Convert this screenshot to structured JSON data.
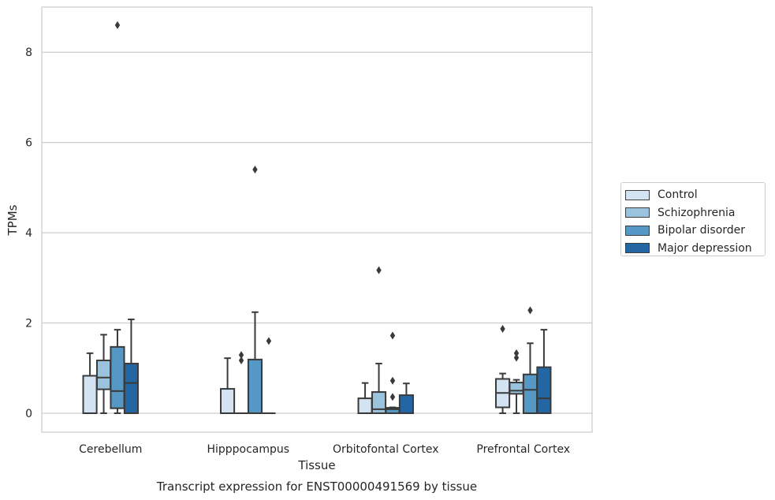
{
  "chart_data": {
    "type": "box",
    "title": "",
    "caption": "Transcript expression for ENST00000491569 by tissue",
    "xlabel": "Tissue",
    "ylabel": "TPMs",
    "ylim": [
      -0.42,
      9.0
    ],
    "yticks": [
      0,
      2,
      4,
      6,
      8
    ],
    "grid": true,
    "legend_position": "right",
    "categories": [
      "Cerebellum",
      "Hipppocampus",
      "Orbitofontal Cortex",
      "Prefrontal Cortex"
    ],
    "series": [
      {
        "name": "Control",
        "color": "#d4e3f2",
        "boxes": [
          {
            "min": 0,
            "q1": 0,
            "median": 0,
            "q3": 0.83,
            "max": 1.33,
            "outliers": []
          },
          {
            "min": 0,
            "q1": 0,
            "median": 0,
            "q3": 0.54,
            "max": 1.22,
            "outliers": []
          },
          {
            "min": 0,
            "q1": 0,
            "median": 0,
            "q3": 0.33,
            "max": 0.67,
            "outliers": []
          },
          {
            "min": 0,
            "q1": 0.13,
            "median": 0.45,
            "q3": 0.76,
            "max": 0.88,
            "outliers": [
              1.87
            ]
          }
        ]
      },
      {
        "name": "Schizophrenia",
        "color": "#9cc3de",
        "boxes": [
          {
            "min": 0,
            "q1": 0.53,
            "median": 0.79,
            "q3": 1.17,
            "max": 1.74,
            "outliers": []
          },
          {
            "min": 0,
            "q1": 0,
            "median": 0,
            "q3": 0,
            "max": 0,
            "outliers": [
              1.17,
              1.29
            ]
          },
          {
            "min": 0,
            "q1": 0,
            "median": 0.09,
            "q3": 0.47,
            "max": 1.1,
            "outliers": [
              3.17
            ]
          },
          {
            "min": 0,
            "q1": 0.43,
            "median": 0.5,
            "q3": 0.68,
            "max": 0.74,
            "outliers": [
              1.23,
              1.33
            ]
          }
        ]
      },
      {
        "name": "Bipolar disorder",
        "color": "#5597c5",
        "boxes": [
          {
            "min": 0,
            "q1": 0.11,
            "median": 0.49,
            "q3": 1.47,
            "max": 1.85,
            "outliers": [
              8.6
            ]
          },
          {
            "min": 0,
            "q1": 0,
            "median": 0,
            "q3": 1.19,
            "max": 2.24,
            "outliers": [
              5.4
            ]
          },
          {
            "min": 0,
            "q1": 0,
            "median": 0.09,
            "q3": 0.12,
            "max": 0.13,
            "outliers": [
              0.36,
              0.72,
              1.72
            ]
          },
          {
            "min": 0,
            "q1": 0,
            "median": 0.52,
            "q3": 0.86,
            "max": 1.55,
            "outliers": [
              2.28
            ]
          }
        ]
      },
      {
        "name": "Major depression",
        "color": "#2466a4",
        "boxes": [
          {
            "min": 0,
            "q1": 0,
            "median": 0.67,
            "q3": 1.1,
            "max": 2.08,
            "outliers": []
          },
          {
            "min": 0,
            "q1": 0,
            "median": 0,
            "q3": 0,
            "max": 0,
            "outliers": [
              1.6
            ]
          },
          {
            "min": 0,
            "q1": 0,
            "median": 0,
            "q3": 0.4,
            "max": 0.66,
            "outliers": []
          },
          {
            "min": 0,
            "q1": 0,
            "median": 0.33,
            "q3": 1.02,
            "max": 1.85,
            "outliers": []
          }
        ]
      }
    ]
  }
}
